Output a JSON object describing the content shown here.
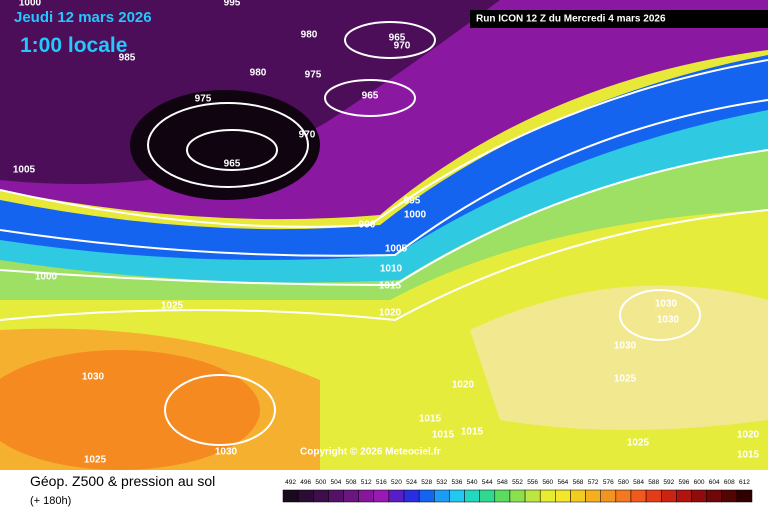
{
  "header": {
    "date": "Jeudi 12 mars 2026",
    "time": "1:00 locale",
    "run": "Run ICON 12 Z du Mercredi 4 mars 2026"
  },
  "map": {
    "isobar_labels": [
      1000,
      995,
      980,
      965,
      970,
      985,
      980,
      975,
      975,
      965,
      970,
      965,
      1005,
      995,
      1000,
      990,
      1005,
      1010,
      1000,
      1015,
      1025,
      1020,
      1030,
      1030,
      1030,
      1030,
      1025,
      1020,
      1015,
      1015,
      1015,
      1030,
      1025,
      1025,
      1020,
      1015
    ],
    "copyright": "Copyright © 2026 Meteociel.fr"
  },
  "footer": {
    "title": "Géop. Z500 & pression au sol",
    "lead": "(+ 180h)"
  },
  "legend": {
    "ticks": [
      492,
      496,
      500,
      504,
      508,
      512,
      516,
      520,
      524,
      528,
      532,
      536,
      540,
      544,
      548,
      552,
      556,
      560,
      564,
      568,
      572,
      576,
      580,
      584,
      588,
      592,
      596,
      600,
      604,
      608,
      612
    ],
    "colors": [
      "#1a0a1e",
      "#2c0c34",
      "#3e0e4c",
      "#541266",
      "#6c1480",
      "#86169a",
      "#9a18b4",
      "#5a1ec8",
      "#2a2ee0",
      "#1464f0",
      "#1c9cf4",
      "#22c8f0",
      "#22d8c0",
      "#30d890",
      "#5adc60",
      "#8ce050",
      "#bce640",
      "#e8ec30",
      "#f4e628",
      "#f4cc20",
      "#f4b020",
      "#f49420",
      "#f47820",
      "#f05a1c",
      "#e43c18",
      "#cc2414",
      "#b01410",
      "#900c0c",
      "#700808",
      "#500404",
      "#300000"
    ]
  }
}
